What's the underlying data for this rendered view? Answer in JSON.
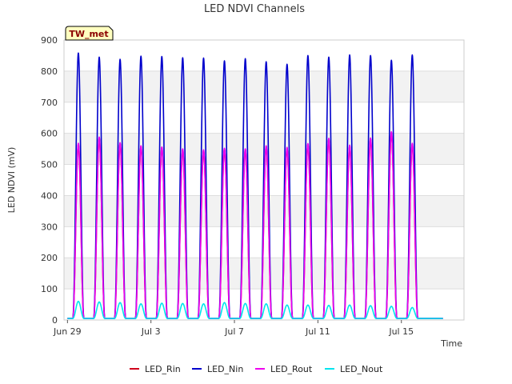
{
  "chart_data": {
    "type": "line",
    "title": "LED NDVI Channels",
    "xlabel": "Time",
    "ylabel": "LED NDVI (mV)",
    "ylim": [
      0,
      900
    ],
    "yticks": [
      0,
      100,
      200,
      300,
      400,
      500,
      600,
      700,
      800,
      900
    ],
    "xlim": [
      "2023-06-28T20:00",
      "2023-07-18T00:00"
    ],
    "xticks": [
      {
        "date": "2023-06-29",
        "label": "Jun 29"
      },
      {
        "date": "2023-07-03",
        "label": "Jul 3"
      },
      {
        "date": "2023-07-07",
        "label": "Jul 7"
      },
      {
        "date": "2023-07-11",
        "label": "Jul 11"
      },
      {
        "date": "2023-07-15",
        "label": "Jul 15"
      }
    ],
    "grid": true,
    "legend_position": "bottom",
    "badge": "TW_met",
    "days": [
      "2023-06-29",
      "2023-06-30",
      "2023-07-01",
      "2023-07-02",
      "2023-07-03",
      "2023-07-04",
      "2023-07-05",
      "2023-07-06",
      "2023-07-07",
      "2023-07-08",
      "2023-07-09",
      "2023-07-10",
      "2023-07-11",
      "2023-07-12",
      "2023-07-13",
      "2023-07-14",
      "2023-07-15",
      "2023-07-16"
    ],
    "night_value": 5,
    "series": [
      {
        "name": "LED_Rin",
        "color": "#d0001c",
        "daily_peak": [
          565,
          585,
          568,
          558,
          555,
          548,
          545,
          550,
          548,
          558,
          552,
          565,
          582,
          560,
          582,
          602,
          565,
          0
        ]
      },
      {
        "name": "LED_Nin",
        "color": "#0000cc",
        "daily_peak": [
          858,
          845,
          838,
          848,
          847,
          843,
          842,
          833,
          840,
          830,
          822,
          850,
          845,
          852,
          850,
          835,
          852,
          0
        ]
      },
      {
        "name": "LED_Rout",
        "color": "#ee00ee",
        "daily_peak": [
          568,
          588,
          570,
          560,
          556,
          550,
          547,
          552,
          550,
          560,
          555,
          567,
          584,
          562,
          585,
          605,
          568,
          0
        ]
      },
      {
        "name": "LED_Nout",
        "color": "#00e5ee",
        "daily_peak": [
          60,
          58,
          56,
          52,
          54,
          53,
          52,
          56,
          53,
          52,
          48,
          48,
          47,
          48,
          46,
          44,
          40,
          0
        ]
      }
    ]
  }
}
